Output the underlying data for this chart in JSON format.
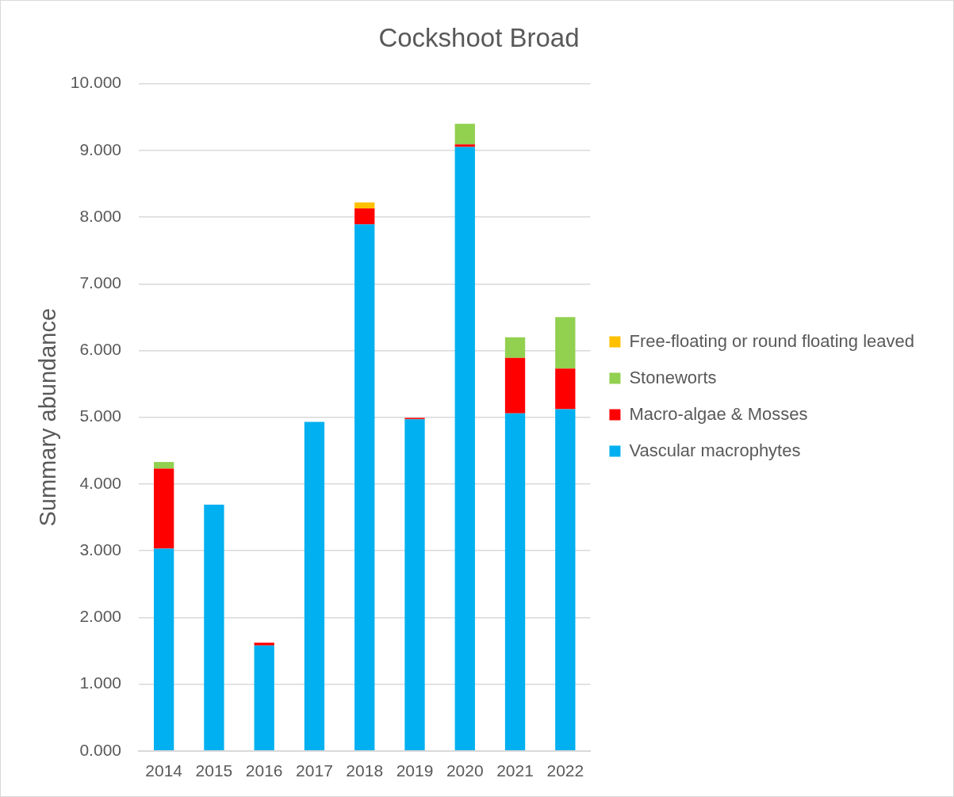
{
  "chart_data": {
    "type": "bar",
    "title": "Cockshoot Broad",
    "ylabel": "Summary abundance",
    "categories": [
      "2014",
      "2015",
      "2016",
      "2017",
      "2018",
      "2019",
      "2020",
      "2021",
      "2022"
    ],
    "series": [
      {
        "name": "Vascular macrophytes",
        "color": "#00b0f0",
        "values": [
          3.03,
          3.69,
          1.58,
          4.93,
          7.89,
          4.97,
          9.05,
          5.06,
          5.12
        ]
      },
      {
        "name": "Macro-algae & Mosses",
        "color": "#ff0000",
        "values": [
          1.2,
          null,
          0.04,
          null,
          0.24,
          0.02,
          0.04,
          0.83,
          0.61
        ]
      },
      {
        "name": "Stoneworts",
        "color": "#92d050",
        "values": [
          0.1,
          null,
          null,
          null,
          null,
          null,
          0.31,
          0.31,
          0.77
        ]
      },
      {
        "name": "Free-floating or round floating leaved",
        "color": "#ffc000",
        "values": [
          null,
          null,
          null,
          null,
          0.09,
          null,
          null,
          null,
          null
        ]
      }
    ],
    "stacked": true,
    "ylim": [
      0,
      10
    ],
    "yticks": [
      {
        "value": 0,
        "label": "0.000"
      },
      {
        "value": 1,
        "label": "1.000"
      },
      {
        "value": 2,
        "label": "2.000"
      },
      {
        "value": 3,
        "label": "3.000"
      },
      {
        "value": 4,
        "label": "4.000"
      },
      {
        "value": 5,
        "label": "5.000"
      },
      {
        "value": 6,
        "label": "6.000"
      },
      {
        "value": 7,
        "label": "7.000"
      },
      {
        "value": 8,
        "label": "8.000"
      },
      {
        "value": 9,
        "label": "9.000"
      },
      {
        "value": 10,
        "label": "10.000"
      }
    ],
    "grid": "y",
    "legend": "right"
  }
}
